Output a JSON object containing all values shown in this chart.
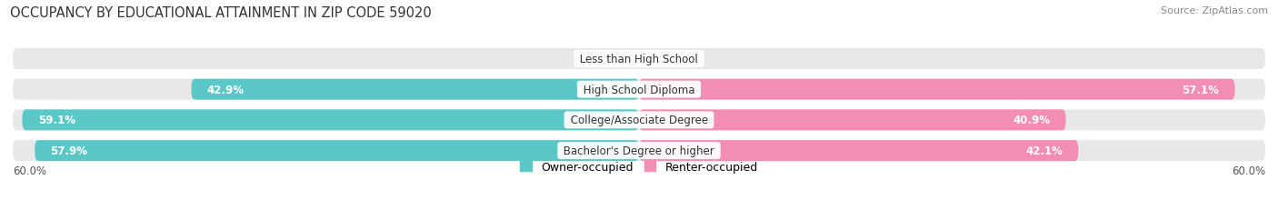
{
  "title": "OCCUPANCY BY EDUCATIONAL ATTAINMENT IN ZIP CODE 59020",
  "source": "Source: ZipAtlas.com",
  "categories": [
    "Less than High School",
    "High School Diploma",
    "College/Associate Degree",
    "Bachelor's Degree or higher"
  ],
  "owner_values": [
    0.0,
    42.9,
    59.1,
    57.9
  ],
  "renter_values": [
    0.0,
    57.1,
    40.9,
    42.1
  ],
  "owner_color": "#5bc8c8",
  "renter_color": "#f48db4",
  "bar_bg_color": "#e8e8e8",
  "bg_color": "#ffffff",
  "max_val": 60.0,
  "legend_owner": "Owner-occupied",
  "legend_renter": "Renter-occupied",
  "title_fontsize": 10.5,
  "source_fontsize": 8,
  "label_fontsize": 8.5,
  "cat_fontsize": 8.5,
  "axis_fontsize": 8.5
}
